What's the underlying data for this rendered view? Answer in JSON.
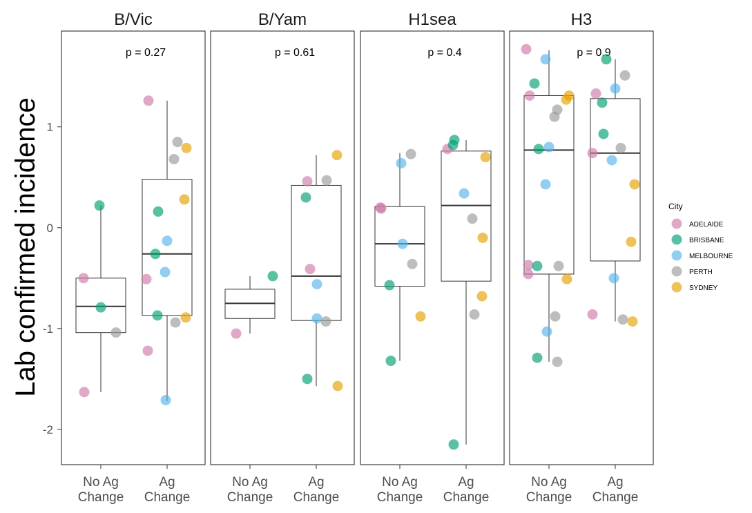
{
  "chart_data": {
    "type": "boxplot_jitter",
    "ylabel": "Lab confirmed incidence",
    "ylim": [
      -2.35,
      1.95
    ],
    "yticks": [
      -2,
      -1,
      0,
      1
    ],
    "categories": [
      "No Ag\nChange",
      "Ag\nChange"
    ],
    "legend": {
      "title": "City",
      "position": "right",
      "entries": [
        {
          "name": "ADELAIDE",
          "color": "#CC79A7"
        },
        {
          "name": "BRISBANE",
          "color": "#009E73"
        },
        {
          "name": "MELBOURNE",
          "color": "#56B4E9"
        },
        {
          "name": "PERTH",
          "color": "#999999"
        },
        {
          "name": "SYDNEY",
          "color": "#E69F00"
        }
      ]
    },
    "panels": [
      {
        "title": "B/Vic",
        "p_label": "p = 0.27",
        "boxes": [
          {
            "q1": -1.04,
            "median": -0.78,
            "q3": -0.5,
            "whisker_low": -1.63,
            "whisker_high": 0.22
          },
          {
            "q1": -0.87,
            "median": -0.26,
            "q3": 0.48,
            "whisker_low": -1.72,
            "whisker_high": 1.26
          }
        ],
        "points": [
          {
            "group": 0,
            "dx": -0.25,
            "y": -0.5,
            "city": "ADELAIDE"
          },
          {
            "group": 0,
            "dx": -0.24,
            "y": -1.63,
            "city": "ADELAIDE"
          },
          {
            "group": 0,
            "dx": -0.02,
            "y": 0.22,
            "city": "BRISBANE"
          },
          {
            "group": 0,
            "dx": 0.0,
            "y": -0.79,
            "city": "BRISBANE"
          },
          {
            "group": 0,
            "dx": 0.22,
            "y": -1.04,
            "city": "PERTH"
          },
          {
            "group": 1,
            "dx": -0.27,
            "y": 1.26,
            "city": "ADELAIDE"
          },
          {
            "group": 1,
            "dx": -0.3,
            "y": -0.51,
            "city": "ADELAIDE"
          },
          {
            "group": 1,
            "dx": -0.28,
            "y": -1.22,
            "city": "ADELAIDE"
          },
          {
            "group": 1,
            "dx": -0.13,
            "y": 0.16,
            "city": "BRISBANE"
          },
          {
            "group": 1,
            "dx": -0.17,
            "y": -0.26,
            "city": "BRISBANE"
          },
          {
            "group": 1,
            "dx": -0.14,
            "y": -0.87,
            "city": "BRISBANE"
          },
          {
            "group": 1,
            "dx": 0.0,
            "y": -0.13,
            "city": "MELBOURNE"
          },
          {
            "group": 1,
            "dx": -0.03,
            "y": -0.44,
            "city": "MELBOURNE"
          },
          {
            "group": 1,
            "dx": -0.02,
            "y": -1.71,
            "city": "MELBOURNE"
          },
          {
            "group": 1,
            "dx": 0.15,
            "y": 0.85,
            "city": "PERTH"
          },
          {
            "group": 1,
            "dx": 0.1,
            "y": 0.68,
            "city": "PERTH"
          },
          {
            "group": 1,
            "dx": 0.12,
            "y": -0.94,
            "city": "PERTH"
          },
          {
            "group": 1,
            "dx": 0.28,
            "y": 0.79,
            "city": "SYDNEY"
          },
          {
            "group": 1,
            "dx": 0.25,
            "y": 0.28,
            "city": "SYDNEY"
          },
          {
            "group": 1,
            "dx": 0.27,
            "y": -0.89,
            "city": "SYDNEY"
          }
        ]
      },
      {
        "title": "B/Yam",
        "p_label": "p = 0.61",
        "boxes": [
          {
            "q1": -0.9,
            "median": -0.75,
            "q3": -0.61,
            "whisker_low": -1.05,
            "whisker_high": -0.48
          },
          {
            "q1": -0.92,
            "median": -0.48,
            "q3": 0.42,
            "whisker_low": -1.57,
            "whisker_high": 0.72
          }
        ],
        "points": [
          {
            "group": 0,
            "dx": 0.33,
            "y": -0.48,
            "city": "BRISBANE"
          },
          {
            "group": 0,
            "dx": -0.2,
            "y": -1.05,
            "city": "ADELAIDE"
          },
          {
            "group": 1,
            "dx": -0.13,
            "y": 0.46,
            "city": "ADELAIDE"
          },
          {
            "group": 1,
            "dx": -0.09,
            "y": -0.41,
            "city": "ADELAIDE"
          },
          {
            "group": 1,
            "dx": -0.15,
            "y": 0.3,
            "city": "BRISBANE"
          },
          {
            "group": 1,
            "dx": -0.13,
            "y": -1.5,
            "city": "BRISBANE"
          },
          {
            "group": 1,
            "dx": 0.01,
            "y": -0.56,
            "city": "MELBOURNE"
          },
          {
            "group": 1,
            "dx": 0.01,
            "y": -0.9,
            "city": "MELBOURNE"
          },
          {
            "group": 1,
            "dx": 0.15,
            "y": 0.47,
            "city": "PERTH"
          },
          {
            "group": 1,
            "dx": 0.14,
            "y": -0.93,
            "city": "PERTH"
          },
          {
            "group": 1,
            "dx": 0.3,
            "y": 0.72,
            "city": "SYDNEY"
          },
          {
            "group": 1,
            "dx": 0.31,
            "y": -1.57,
            "city": "SYDNEY"
          }
        ]
      },
      {
        "title": "H1sea",
        "p_label": "p = 0.4",
        "boxes": [
          {
            "q1": -0.58,
            "median": -0.16,
            "q3": 0.21,
            "whisker_low": -1.32,
            "whisker_high": 0.74
          },
          {
            "q1": -0.53,
            "median": 0.22,
            "q3": 0.76,
            "whisker_low": -2.15,
            "whisker_high": 0.87
          }
        ],
        "points": [
          {
            "group": 0,
            "dx": -0.28,
            "y": 0.2,
            "city": "ADELAIDE"
          },
          {
            "group": 0,
            "dx": -0.27,
            "y": 0.19,
            "city": "ADELAIDE"
          },
          {
            "group": 0,
            "dx": -0.15,
            "y": -0.57,
            "city": "BRISBANE"
          },
          {
            "group": 0,
            "dx": -0.13,
            "y": -1.32,
            "city": "BRISBANE"
          },
          {
            "group": 0,
            "dx": 0.02,
            "y": 0.64,
            "city": "MELBOURNE"
          },
          {
            "group": 0,
            "dx": 0.04,
            "y": -0.16,
            "city": "MELBOURNE"
          },
          {
            "group": 0,
            "dx": 0.16,
            "y": 0.73,
            "city": "PERTH"
          },
          {
            "group": 0,
            "dx": 0.18,
            "y": -0.36,
            "city": "PERTH"
          },
          {
            "group": 0,
            "dx": 0.3,
            "y": -0.88,
            "city": "SYDNEY"
          },
          {
            "group": 1,
            "dx": -0.27,
            "y": 0.78,
            "city": "ADELAIDE"
          },
          {
            "group": 1,
            "dx": -0.19,
            "y": 0.82,
            "city": "BRISBANE"
          },
          {
            "group": 1,
            "dx": -0.17,
            "y": 0.87,
            "city": "BRISBANE"
          },
          {
            "group": 1,
            "dx": -0.18,
            "y": -2.15,
            "city": "BRISBANE"
          },
          {
            "group": 1,
            "dx": -0.03,
            "y": 0.34,
            "city": "MELBOURNE"
          },
          {
            "group": 1,
            "dx": 0.09,
            "y": 0.09,
            "city": "PERTH"
          },
          {
            "group": 1,
            "dx": 0.12,
            "y": -0.86,
            "city": "PERTH"
          },
          {
            "group": 1,
            "dx": 0.28,
            "y": 0.7,
            "city": "SYDNEY"
          },
          {
            "group": 1,
            "dx": 0.24,
            "y": -0.1,
            "city": "SYDNEY"
          },
          {
            "group": 1,
            "dx": 0.23,
            "y": -0.68,
            "city": "SYDNEY"
          }
        ]
      },
      {
        "title": "H3",
        "p_label": "p = 0.9",
        "boxes": [
          {
            "q1": -0.46,
            "median": 0.77,
            "q3": 1.31,
            "whisker_low": -1.33,
            "whisker_high": 1.76
          },
          {
            "q1": -0.33,
            "median": 0.74,
            "q3": 1.28,
            "whisker_low": -0.93,
            "whisker_high": 1.67
          }
        ],
        "points": [
          {
            "group": 0,
            "dx": -0.33,
            "y": 1.77,
            "city": "ADELAIDE"
          },
          {
            "group": 0,
            "dx": -0.28,
            "y": 1.31,
            "city": "ADELAIDE"
          },
          {
            "group": 0,
            "dx": -0.3,
            "y": -0.37,
            "city": "ADELAIDE"
          },
          {
            "group": 0,
            "dx": -0.3,
            "y": -0.46,
            "city": "ADELAIDE"
          },
          {
            "group": 0,
            "dx": -0.21,
            "y": 1.43,
            "city": "BRISBANE"
          },
          {
            "group": 0,
            "dx": -0.15,
            "y": 0.78,
            "city": "BRISBANE"
          },
          {
            "group": 0,
            "dx": -0.17,
            "y": -0.38,
            "city": "BRISBANE"
          },
          {
            "group": 0,
            "dx": -0.17,
            "y": -1.29,
            "city": "BRISBANE"
          },
          {
            "group": 0,
            "dx": -0.05,
            "y": 1.67,
            "city": "MELBOURNE"
          },
          {
            "group": 0,
            "dx": 0.0,
            "y": 0.8,
            "city": "MELBOURNE"
          },
          {
            "group": 0,
            "dx": -0.05,
            "y": 0.43,
            "city": "MELBOURNE"
          },
          {
            "group": 0,
            "dx": -0.03,
            "y": -1.03,
            "city": "MELBOURNE"
          },
          {
            "group": 0,
            "dx": 0.12,
            "y": 1.17,
            "city": "PERTH"
          },
          {
            "group": 0,
            "dx": 0.08,
            "y": 1.1,
            "city": "PERTH"
          },
          {
            "group": 0,
            "dx": 0.14,
            "y": -0.38,
            "city": "PERTH"
          },
          {
            "group": 0,
            "dx": 0.09,
            "y": -0.88,
            "city": "PERTH"
          },
          {
            "group": 0,
            "dx": 0.12,
            "y": -1.33,
            "city": "PERTH"
          },
          {
            "group": 0,
            "dx": 0.29,
            "y": 1.31,
            "city": "SYDNEY"
          },
          {
            "group": 0,
            "dx": 0.25,
            "y": 1.27,
            "city": "SYDNEY"
          },
          {
            "group": 0,
            "dx": 0.26,
            "y": -0.51,
            "city": "SYDNEY"
          },
          {
            "group": 1,
            "dx": -0.28,
            "y": 1.33,
            "city": "ADELAIDE"
          },
          {
            "group": 1,
            "dx": -0.33,
            "y": 0.74,
            "city": "ADELAIDE"
          },
          {
            "group": 1,
            "dx": -0.33,
            "y": -0.86,
            "city": "ADELAIDE"
          },
          {
            "group": 1,
            "dx": -0.13,
            "y": 1.67,
            "city": "BRISBANE"
          },
          {
            "group": 1,
            "dx": -0.19,
            "y": 1.24,
            "city": "BRISBANE"
          },
          {
            "group": 1,
            "dx": -0.17,
            "y": 0.93,
            "city": "BRISBANE"
          },
          {
            "group": 1,
            "dx": 0.0,
            "y": 1.38,
            "city": "MELBOURNE"
          },
          {
            "group": 1,
            "dx": -0.05,
            "y": 0.67,
            "city": "MELBOURNE"
          },
          {
            "group": 1,
            "dx": -0.02,
            "y": -0.5,
            "city": "MELBOURNE"
          },
          {
            "group": 1,
            "dx": 0.14,
            "y": 1.51,
            "city": "PERTH"
          },
          {
            "group": 1,
            "dx": 0.08,
            "y": 0.79,
            "city": "PERTH"
          },
          {
            "group": 1,
            "dx": 0.11,
            "y": -0.91,
            "city": "PERTH"
          },
          {
            "group": 1,
            "dx": 0.28,
            "y": 0.43,
            "city": "SYDNEY"
          },
          {
            "group": 1,
            "dx": 0.23,
            "y": -0.14,
            "city": "SYDNEY"
          },
          {
            "group": 1,
            "dx": 0.25,
            "y": -0.93,
            "city": "SYDNEY"
          }
        ]
      }
    ]
  }
}
